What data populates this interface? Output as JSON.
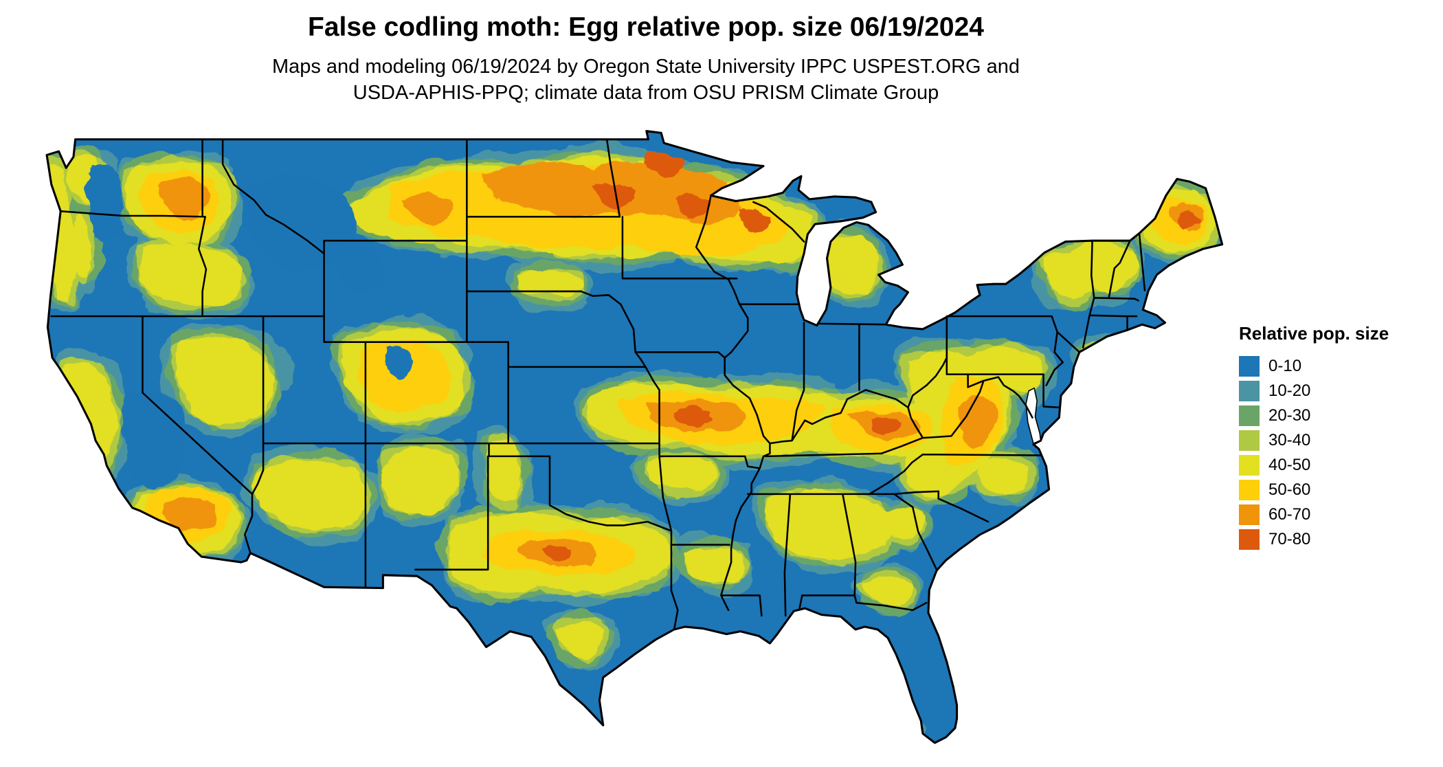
{
  "header": {
    "title": "False codling moth: Egg relative pop. size 06/19/2024",
    "subtitle_line1": "Maps and modeling 06/19/2024 by Oregon State University IPPC USPEST.ORG and",
    "subtitle_line2": "USDA-APHIS-PPQ; climate data from OSU PRISM Climate Group"
  },
  "legend": {
    "title": "Rel­ative pop. size",
    "items": [
      {
        "label": "0-10",
        "color": "#1d76b6"
      },
      {
        "label": "10-20",
        "color": "#4a94a4"
      },
      {
        "label": "20-30",
        "color": "#6aa567"
      },
      {
        "label": "30-40",
        "color": "#b0c943"
      },
      {
        "label": "40-50",
        "color": "#e3df21"
      },
      {
        "label": "50-60",
        "color": "#fdcf08"
      },
      {
        "label": "60-70",
        "color": "#f0940a"
      },
      {
        "label": "70-80",
        "color": "#dd5a0d"
      }
    ]
  }
}
